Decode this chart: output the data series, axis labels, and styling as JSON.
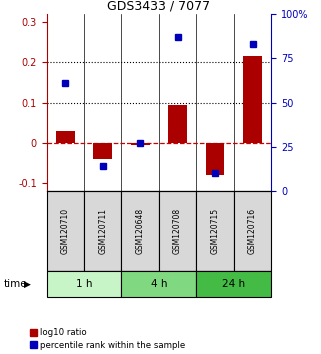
{
  "title": "GDS3433 / 7077",
  "samples": [
    "GSM120710",
    "GSM120711",
    "GSM120648",
    "GSM120708",
    "GSM120715",
    "GSM120716"
  ],
  "log10_ratio": [
    0.03,
    -0.04,
    -0.005,
    0.095,
    -0.08,
    0.215
  ],
  "percentile_rank": [
    61,
    14,
    27,
    87,
    10,
    83
  ],
  "groups": [
    {
      "label": "1 h",
      "start": 0,
      "end": 2,
      "color": "#c8f5c8"
    },
    {
      "label": "4 h",
      "start": 2,
      "end": 4,
      "color": "#80d880"
    },
    {
      "label": "24 h",
      "start": 4,
      "end": 6,
      "color": "#44bb44"
    }
  ],
  "ylim_left": [
    -0.12,
    0.32
  ],
  "ylim_right": [
    0,
    100
  ],
  "yticks_left": [
    -0.1,
    0.0,
    0.1,
    0.2,
    0.3
  ],
  "yticks_right": [
    0,
    25,
    50,
    75,
    100
  ],
  "bar_color": "#aa0000",
  "dot_color": "#0000bb",
  "background_color": "#ffffff",
  "zero_line_color": "#cc0000",
  "sample_box_color": "#d8d8d8",
  "time_label": "time"
}
